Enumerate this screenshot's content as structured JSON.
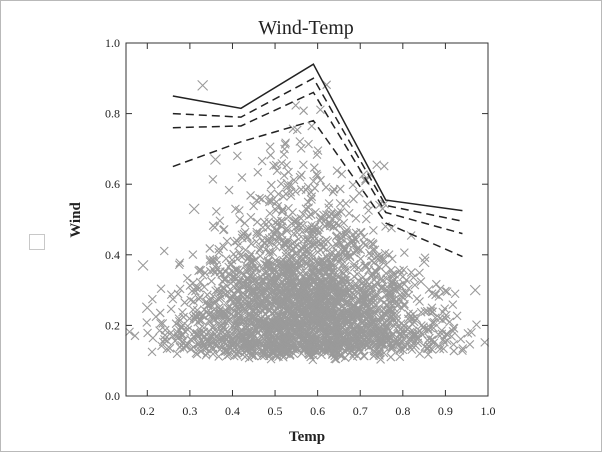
{
  "chart_data": {
    "type": "scatter",
    "title": "Wind-Temp",
    "xlabel": "Temp",
    "ylabel": "Wind",
    "xlim": [
      0.15,
      1.0
    ],
    "ylim": [
      0.0,
      1.0
    ],
    "xticks": [
      "0.2",
      "0.3",
      "0.4",
      "0.5",
      "0.6",
      "0.7",
      "0.8",
      "0.9",
      "1.0"
    ],
    "yticks": [
      "0.0",
      "0.2",
      "0.4",
      "0.6",
      "0.8",
      "1.0"
    ],
    "grid": false,
    "colors": {
      "scatter": "#9a9a9a",
      "lines": "#222222"
    },
    "series": [
      {
        "style": "solid",
        "x": [
          0.26,
          0.42,
          0.59,
          0.76,
          0.94
        ],
        "y": [
          0.85,
          0.815,
          0.94,
          0.555,
          0.525
        ]
      },
      {
        "style": "dashed",
        "x": [
          0.26,
          0.42,
          0.59,
          0.76,
          0.94
        ],
        "y": [
          0.8,
          0.79,
          0.9,
          0.54,
          0.495
        ]
      },
      {
        "style": "dashed",
        "x": [
          0.26,
          0.42,
          0.59,
          0.76,
          0.94
        ],
        "y": [
          0.76,
          0.765,
          0.86,
          0.52,
          0.46
        ]
      },
      {
        "style": "dashed",
        "x": [
          0.26,
          0.42,
          0.59,
          0.76,
          0.94
        ],
        "y": [
          0.65,
          0.72,
          0.78,
          0.49,
          0.395
        ]
      }
    ],
    "scatter": {
      "marker": "x",
      "description_points": "dense cloud of observations",
      "outliers": [
        [
          0.33,
          0.88
        ],
        [
          0.36,
          0.67
        ],
        [
          0.19,
          0.37
        ],
        [
          0.97,
          0.3
        ],
        [
          0.2,
          0.25
        ],
        [
          0.85,
          0.38
        ],
        [
          0.31,
          0.53
        ],
        [
          0.53,
          0.6
        ]
      ]
    }
  }
}
